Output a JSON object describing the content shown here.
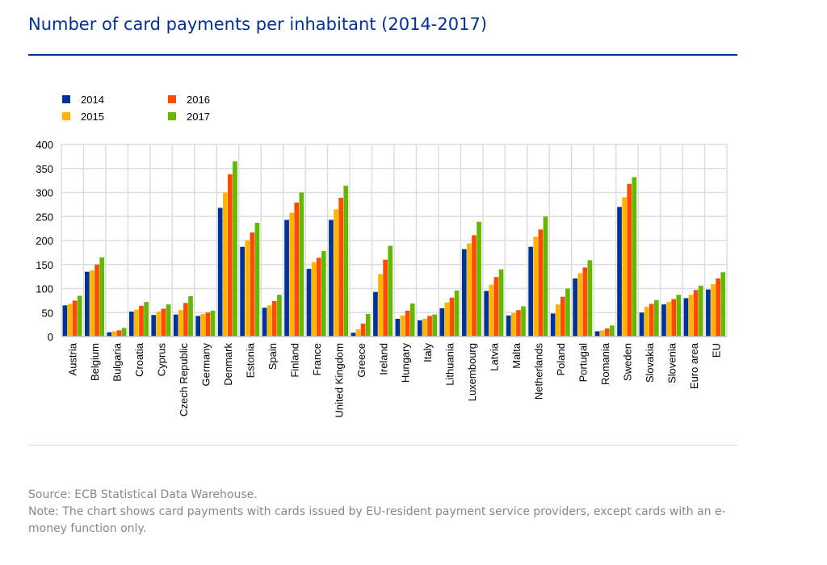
{
  "title": "Number of card payments per inhabitant (2014-2017)",
  "source": "Source: ECB Statistical Data Warehouse.",
  "note": "Note: The chart shows card payments with cards issued by EU-resident payment service providers, except cards with an e-money function only.",
  "chart_data": {
    "type": "bar",
    "title": "Number of card payments per inhabitant (2014-2017)",
    "xlabel": "",
    "ylabel": "",
    "ylim": [
      0,
      400
    ],
    "yticks": [
      0,
      50,
      100,
      150,
      200,
      250,
      300,
      350,
      400
    ],
    "grid": true,
    "legend_position": "top-left",
    "categories": [
      "Austria",
      "Belgium",
      "Bulgaria",
      "Croatia",
      "Cyprus",
      "Czech Republic",
      "Germany",
      "Denmark",
      "Estonia",
      "Spain",
      "Finland",
      "France",
      "United Kingdom",
      "Greece",
      "Ireland",
      "Hungary",
      "Italy",
      "Lithuania",
      "Luxembourg",
      "Latvia",
      "Malta",
      "Netherlands",
      "Poland",
      "Portugal",
      "Romania",
      "Sweden",
      "Slovakia",
      "Slovenia",
      "Euro area",
      "EU"
    ],
    "series": [
      {
        "name": "2014",
        "color": "#003299",
        "values": [
          65,
          135,
          9,
          52,
          45,
          46,
          43,
          268,
          187,
          60,
          243,
          141,
          243,
          8,
          93,
          37,
          34,
          59,
          182,
          95,
          44,
          187,
          48,
          121,
          11,
          270,
          50,
          67,
          80,
          98
        ]
      },
      {
        "name": "2015",
        "color": "#FFB400",
        "values": [
          68,
          138,
          11,
          56,
          52,
          55,
          47,
          300,
          200,
          65,
          258,
          155,
          265,
          15,
          130,
          44,
          37,
          71,
          194,
          108,
          49,
          208,
          67,
          132,
          13,
          290,
          62,
          72,
          87,
          109
        ]
      },
      {
        "name": "2016",
        "color": "#FF4B00",
        "values": [
          75,
          150,
          13,
          64,
          58,
          70,
          50,
          338,
          217,
          74,
          279,
          164,
          289,
          27,
          160,
          54,
          43,
          81,
          211,
          124,
          55,
          223,
          83,
          144,
          17,
          318,
          68,
          78,
          97,
          121
        ]
      },
      {
        "name": "2017",
        "color": "#65B800",
        "values": [
          85,
          165,
          18,
          72,
          67,
          84,
          54,
          365,
          237,
          87,
          300,
          178,
          314,
          47,
          189,
          69,
          46,
          96,
          239,
          140,
          63,
          250,
          100,
          159,
          23,
          332,
          76,
          87,
          106,
          134
        ]
      }
    ]
  }
}
